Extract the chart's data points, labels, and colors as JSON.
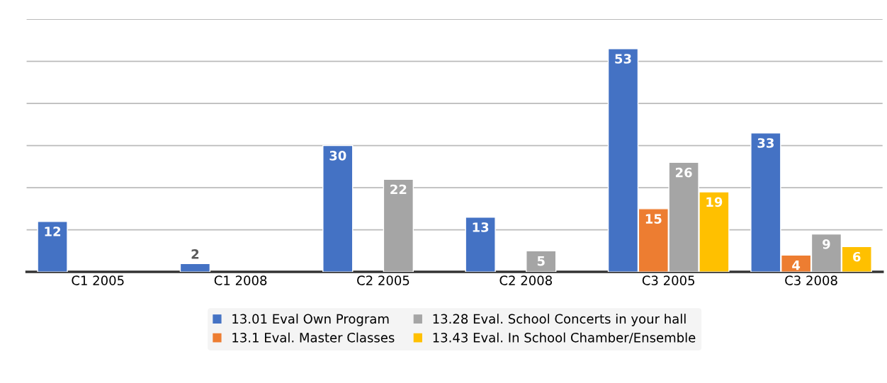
{
  "chart_data": {
    "type": "bar",
    "categories": [
      "C1 2005",
      "C1 2008",
      "C2 2005",
      "C2 2008",
      "C3 2005",
      "C3 2008"
    ],
    "series": [
      {
        "name": "13.01 Eval Own Program",
        "color": "#4472c4",
        "values": [
          12,
          2,
          30,
          13,
          53,
          33
        ]
      },
      {
        "name": "13.1 Eval. Master Classes",
        "color": "#ed7d31",
        "values": [
          null,
          null,
          null,
          null,
          15,
          4
        ]
      },
      {
        "name": "13.28 Eval. School Concerts in your hall",
        "color": "#a5a5a5",
        "values": [
          null,
          null,
          22,
          5,
          26,
          9
        ]
      },
      {
        "name": "13.43 Eval. In School Chamber/Ensemble",
        "color": "#ffc000",
        "values": [
          null,
          null,
          null,
          null,
          19,
          6
        ]
      }
    ],
    "ylim": [
      0,
      60
    ],
    "yticks": [
      {
        "value": 0,
        "label": null
      },
      {
        "value": 10,
        "label": null
      },
      {
        "value": 20,
        "label": null
      },
      {
        "value": 30,
        "label": null
      },
      {
        "value": 40,
        "label": null
      },
      {
        "value": 50,
        "label": null
      },
      {
        "value": 60,
        "label": null
      }
    ],
    "tick_labels": "x",
    "grid": "y",
    "legend": "bottom",
    "data_labels": true
  }
}
